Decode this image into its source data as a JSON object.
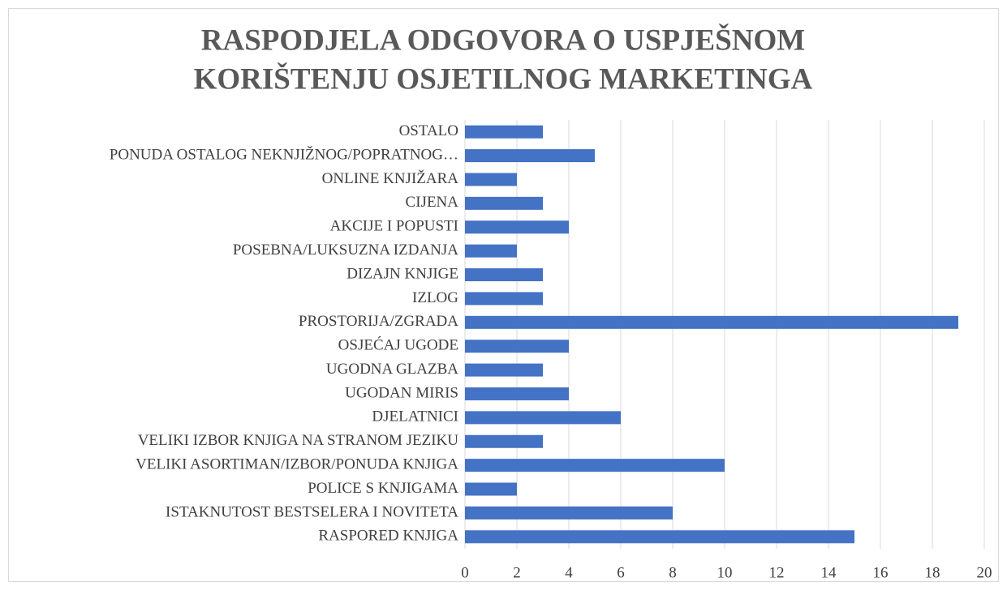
{
  "chart_data": {
    "type": "barh",
    "title": [
      "RASPODJELA ODGOVORA O USPJEŠNOM",
      "KORIŠTENJU OSJETILNOG MARKETINGA"
    ],
    "categories": [
      "OSTALO",
      "PONUDA OSTALOG NEKNJIŽNOG/POPRATNOG…",
      "ONLINE KNJIŽARA",
      "CIJENA",
      "AKCIJE I POPUSTI",
      "POSEBNA/LUKSUZNA IZDANJA",
      "DIZAJN KNJIGE",
      "IZLOG",
      "PROSTORIJA/ZGRADA",
      "OSJEĆAJ UGODE",
      "UGODNA GLAZBA",
      "UGODAN MIRIS",
      "DJELATNICI",
      "VELIKI IZBOR KNJIGA NA STRANOM JEZIKU",
      "VELIKI ASORTIMAN/IZBOR/PONUDA KNJIGA",
      "POLICE S KNJIGAMA",
      "ISTAKNUTOST BESTSELERA I NOVITETA",
      "RASPORED KNJIGA"
    ],
    "values": [
      3,
      5,
      2,
      3,
      4,
      2,
      3,
      3,
      19,
      4,
      3,
      4,
      6,
      3,
      10,
      2,
      8,
      15
    ],
    "color": "#4472c4",
    "xlim": [
      0,
      20
    ],
    "xticks": [
      0,
      2,
      4,
      6,
      8,
      10,
      12,
      14,
      16,
      18,
      20
    ],
    "grid": true
  }
}
